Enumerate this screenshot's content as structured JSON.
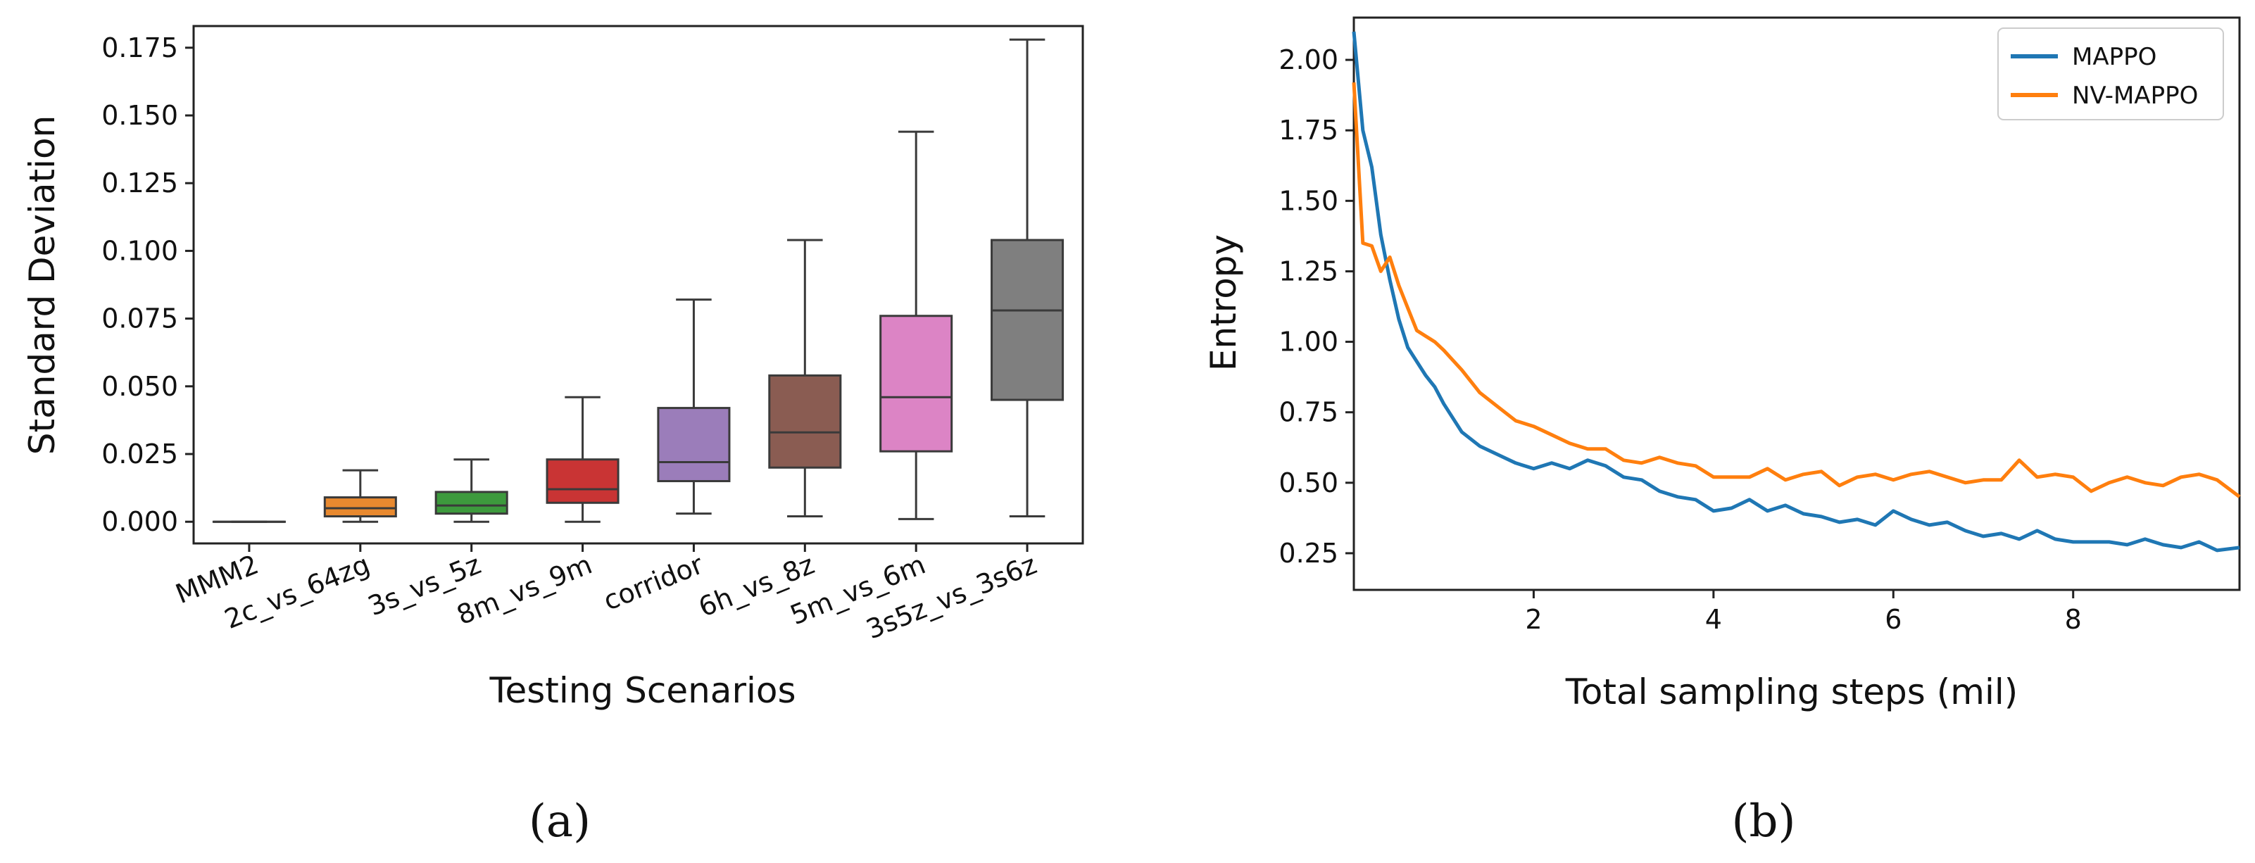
{
  "chart_data": [
    {
      "type": "box",
      "panel_label": "(a)",
      "xlabel": "Testing Scenarios",
      "ylabel": "Standard Deviation",
      "ylim": [
        -0.008,
        0.183
      ],
      "y_ticks": [
        "0.000",
        "0.025",
        "0.050",
        "0.075",
        "0.100",
        "0.125",
        "0.150",
        "0.175"
      ],
      "y_tick_values": [
        0.0,
        0.025,
        0.05,
        0.075,
        0.1,
        0.125,
        0.15,
        0.175
      ],
      "categories": [
        "MMM2",
        "2c_vs_64zg",
        "3s_vs_5z",
        "8m_vs_9m",
        "corridor",
        "6h_vs_8z",
        "5m_vs_6m",
        "3s5z_vs_3s6z"
      ],
      "colors": [
        "#1f77b4",
        "#e8892f",
        "#3d9a3d",
        "#c93434",
        "#9b7dba",
        "#8a5c52",
        "#dc84c5",
        "#7f7f7f"
      ],
      "boxes": [
        {
          "min": 0.0,
          "q1": 0.0,
          "median": 0.0,
          "q3": 0.0,
          "max": 0.0
        },
        {
          "min": 0.0,
          "q1": 0.002,
          "median": 0.005,
          "q3": 0.009,
          "max": 0.019
        },
        {
          "min": 0.0,
          "q1": 0.003,
          "median": 0.006,
          "q3": 0.011,
          "max": 0.023
        },
        {
          "min": 0.0,
          "q1": 0.007,
          "median": 0.012,
          "q3": 0.023,
          "max": 0.046
        },
        {
          "min": 0.003,
          "q1": 0.015,
          "median": 0.022,
          "q3": 0.042,
          "max": 0.082
        },
        {
          "min": 0.002,
          "q1": 0.02,
          "median": 0.033,
          "q3": 0.054,
          "max": 0.104
        },
        {
          "min": 0.001,
          "q1": 0.026,
          "median": 0.046,
          "q3": 0.076,
          "max": 0.144
        },
        {
          "min": 0.002,
          "q1": 0.045,
          "median": 0.078,
          "q3": 0.104,
          "max": 0.178
        }
      ]
    },
    {
      "type": "line",
      "panel_label": "(b)",
      "xlabel": "Total sampling steps (mil)",
      "ylabel": "Entropy",
      "xlim": [
        0.0,
        9.85
      ],
      "ylim": [
        0.12,
        2.15
      ],
      "x_ticks": [
        "2",
        "4",
        "6",
        "8"
      ],
      "x_tick_values": [
        2,
        4,
        6,
        8
      ],
      "y_ticks": [
        "0.25",
        "0.50",
        "0.75",
        "1.00",
        "1.25",
        "1.50",
        "1.75",
        "2.00"
      ],
      "y_tick_values": [
        0.25,
        0.5,
        0.75,
        1.0,
        1.25,
        1.5,
        1.75,
        2.0
      ],
      "legend": {
        "position": "upper right"
      },
      "series": [
        {
          "name": "MAPPO",
          "color": "#1f77b4",
          "x": [
            0.0,
            0.1,
            0.2,
            0.3,
            0.4,
            0.5,
            0.6,
            0.7,
            0.8,
            0.9,
            1.0,
            1.2,
            1.4,
            1.6,
            1.8,
            2.0,
            2.2,
            2.4,
            2.6,
            2.8,
            3.0,
            3.2,
            3.4,
            3.6,
            3.8,
            4.0,
            4.2,
            4.4,
            4.6,
            4.8,
            5.0,
            5.2,
            5.4,
            5.6,
            5.8,
            6.0,
            6.2,
            6.4,
            6.6,
            6.8,
            7.0,
            7.2,
            7.4,
            7.6,
            7.8,
            8.0,
            8.2,
            8.4,
            8.6,
            8.8,
            9.0,
            9.2,
            9.4,
            9.6,
            9.85
          ],
          "y": [
            2.1,
            1.75,
            1.62,
            1.38,
            1.22,
            1.08,
            0.98,
            0.93,
            0.88,
            0.84,
            0.78,
            0.68,
            0.63,
            0.6,
            0.57,
            0.55,
            0.57,
            0.55,
            0.58,
            0.56,
            0.52,
            0.51,
            0.47,
            0.45,
            0.44,
            0.4,
            0.41,
            0.44,
            0.4,
            0.42,
            0.39,
            0.38,
            0.36,
            0.37,
            0.35,
            0.4,
            0.37,
            0.35,
            0.36,
            0.33,
            0.31,
            0.32,
            0.3,
            0.33,
            0.3,
            0.29,
            0.29,
            0.29,
            0.28,
            0.3,
            0.28,
            0.27,
            0.29,
            0.26,
            0.27
          ]
        },
        {
          "name": "NV-MAPPO",
          "color": "#ff7f0e",
          "x": [
            0.0,
            0.1,
            0.2,
            0.3,
            0.4,
            0.5,
            0.6,
            0.7,
            0.8,
            0.9,
            1.0,
            1.2,
            1.4,
            1.6,
            1.8,
            2.0,
            2.2,
            2.4,
            2.6,
            2.8,
            3.0,
            3.2,
            3.4,
            3.6,
            3.8,
            4.0,
            4.2,
            4.4,
            4.6,
            4.8,
            5.0,
            5.2,
            5.4,
            5.6,
            5.8,
            6.0,
            6.2,
            6.4,
            6.6,
            6.8,
            7.0,
            7.2,
            7.4,
            7.6,
            7.8,
            8.0,
            8.2,
            8.4,
            8.6,
            8.8,
            9.0,
            9.2,
            9.4,
            9.6,
            9.85
          ],
          "y": [
            1.92,
            1.35,
            1.34,
            1.25,
            1.3,
            1.2,
            1.12,
            1.04,
            1.02,
            1.0,
            0.97,
            0.9,
            0.82,
            0.77,
            0.72,
            0.7,
            0.67,
            0.64,
            0.62,
            0.62,
            0.58,
            0.57,
            0.59,
            0.57,
            0.56,
            0.52,
            0.52,
            0.52,
            0.55,
            0.51,
            0.53,
            0.54,
            0.49,
            0.52,
            0.53,
            0.51,
            0.53,
            0.54,
            0.52,
            0.5,
            0.51,
            0.51,
            0.58,
            0.52,
            0.53,
            0.52,
            0.47,
            0.5,
            0.52,
            0.5,
            0.49,
            0.52,
            0.53,
            0.51,
            0.45
          ]
        }
      ]
    }
  ]
}
